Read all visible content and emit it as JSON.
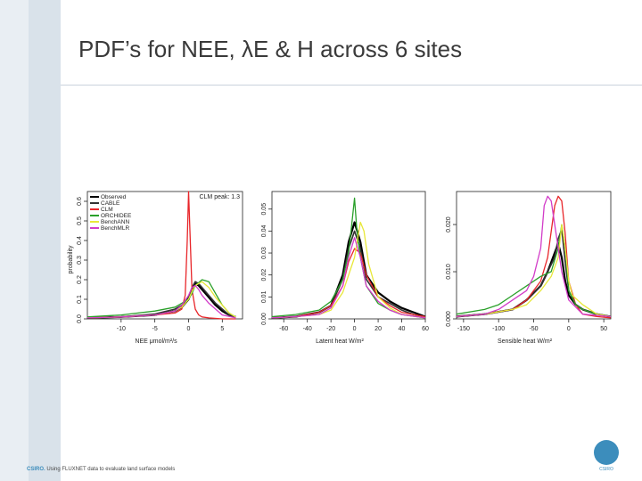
{
  "slide": {
    "title": "PDF’s for NEE, λE & H across 6 sites",
    "footer_brand": "CSIRO.",
    "footer_text": " Using FLUXNET data to evaluate land surface models",
    "logo_text": "CSIRO"
  },
  "legend": {
    "entries": [
      {
        "name": "Observed",
        "color": "#000000"
      },
      {
        "name": "CABLE",
        "color": "#333333"
      },
      {
        "name": "CLM",
        "color": "#e8262a"
      },
      {
        "name": "ORCHIDEE",
        "color": "#2aa02a"
      },
      {
        "name": "BenchANN",
        "color": "#e8e83a"
      },
      {
        "name": "BenchMLR",
        "color": "#d23cc8"
      }
    ]
  },
  "chart_data": [
    {
      "type": "line",
      "xlabel": "NEE μmol/m²/s",
      "ylabel": "probability",
      "xlim": [
        -15,
        8
      ],
      "ylim": [
        0,
        0.65
      ],
      "xticks": [
        "-10",
        "-5",
        "0",
        "5"
      ],
      "yticks": [
        "0.0",
        "0.1",
        "0.2",
        "0.3",
        "0.4",
        "0.5",
        "0.6"
      ],
      "annotation": "CLM peak: 1.3",
      "legend_position": "top-left",
      "series": [
        {
          "name": "Observed",
          "x": [
            -15,
            -10,
            -5,
            -2,
            -1,
            0,
            0.5,
            1,
            1.5,
            2,
            3,
            4,
            5,
            6,
            7
          ],
          "y": [
            0.005,
            0.01,
            0.02,
            0.04,
            0.06,
            0.1,
            0.15,
            0.18,
            0.17,
            0.15,
            0.11,
            0.07,
            0.04,
            0.02,
            0.01
          ]
        },
        {
          "name": "CABLE",
          "x": [
            -15,
            -10,
            -5,
            -2,
            -1,
            0,
            0.5,
            1,
            1.5,
            2,
            3,
            4,
            5,
            6,
            7
          ],
          "y": [
            0.005,
            0.01,
            0.025,
            0.05,
            0.07,
            0.11,
            0.16,
            0.19,
            0.18,
            0.16,
            0.12,
            0.08,
            0.05,
            0.02,
            0.01
          ]
        },
        {
          "name": "CLM",
          "x": [
            -15,
            -10,
            -5,
            -2,
            -1,
            -0.5,
            -0.2,
            0,
            0.2,
            0.5,
            1,
            1.5,
            2,
            3,
            5,
            7
          ],
          "y": [
            0.005,
            0.01,
            0.02,
            0.03,
            0.05,
            0.12,
            0.4,
            0.65,
            0.45,
            0.15,
            0.05,
            0.02,
            0.01,
            0.005,
            0.0,
            0.0
          ]
        },
        {
          "name": "ORCHIDEE",
          "x": [
            -15,
            -10,
            -5,
            -2,
            -1,
            0,
            0.5,
            1,
            2,
            3,
            4,
            5,
            6,
            7
          ],
          "y": [
            0.01,
            0.02,
            0.04,
            0.06,
            0.08,
            0.1,
            0.13,
            0.17,
            0.2,
            0.19,
            0.13,
            0.07,
            0.03,
            0.01
          ]
        },
        {
          "name": "BenchANN",
          "x": [
            -15,
            -10,
            -5,
            -2,
            -1,
            0,
            0.5,
            1,
            2,
            3,
            4,
            5,
            6,
            7
          ],
          "y": [
            0.005,
            0.01,
            0.02,
            0.04,
            0.06,
            0.1,
            0.14,
            0.17,
            0.19,
            0.16,
            0.11,
            0.07,
            0.03,
            0.01
          ]
        },
        {
          "name": "BenchMLR",
          "x": [
            -15,
            -10,
            -5,
            -2,
            -1,
            0,
            0.5,
            1,
            1.5,
            2,
            3,
            4,
            5,
            7
          ],
          "y": [
            0.005,
            0.01,
            0.02,
            0.04,
            0.07,
            0.12,
            0.16,
            0.17,
            0.15,
            0.12,
            0.08,
            0.05,
            0.02,
            0.005
          ]
        }
      ]
    },
    {
      "type": "line",
      "xlabel": "Latent heat W/m²",
      "ylabel": "",
      "xlim": [
        -70,
        60
      ],
      "ylim": [
        0,
        0.058
      ],
      "xticks": [
        "-60",
        "-40",
        "-20",
        "0",
        "20",
        "40",
        "60"
      ],
      "yticks": [
        "0.00",
        "0.01",
        "0.02",
        "0.03",
        "0.04",
        "0.05"
      ],
      "series": [
        {
          "name": "Observed",
          "x": [
            -70,
            -50,
            -30,
            -20,
            -10,
            -5,
            0,
            5,
            10,
            20,
            30,
            40,
            50,
            60
          ],
          "y": [
            0.0005,
            0.001,
            0.003,
            0.006,
            0.02,
            0.035,
            0.044,
            0.035,
            0.02,
            0.012,
            0.008,
            0.005,
            0.003,
            0.001
          ]
        },
        {
          "name": "CABLE",
          "x": [
            -70,
            -50,
            -30,
            -20,
            -10,
            -5,
            0,
            5,
            10,
            20,
            30,
            40,
            50,
            60
          ],
          "y": [
            0.0005,
            0.001,
            0.003,
            0.006,
            0.018,
            0.032,
            0.04,
            0.032,
            0.018,
            0.01,
            0.007,
            0.004,
            0.002,
            0.001
          ]
        },
        {
          "name": "CLM",
          "x": [
            -70,
            -50,
            -30,
            -20,
            -10,
            -5,
            0,
            5,
            10,
            20,
            30,
            40,
            50,
            60
          ],
          "y": [
            0.0005,
            0.001,
            0.003,
            0.006,
            0.015,
            0.026,
            0.032,
            0.03,
            0.02,
            0.01,
            0.006,
            0.003,
            0.002,
            0.001
          ]
        },
        {
          "name": "ORCHIDEE",
          "x": [
            -70,
            -50,
            -30,
            -20,
            -10,
            -5,
            -2,
            0,
            2,
            5,
            10,
            20,
            30,
            40,
            60
          ],
          "y": [
            0.001,
            0.002,
            0.004,
            0.008,
            0.018,
            0.03,
            0.045,
            0.055,
            0.04,
            0.028,
            0.015,
            0.007,
            0.004,
            0.002,
            0.0005
          ]
        },
        {
          "name": "BenchANN",
          "x": [
            -70,
            -50,
            -30,
            -20,
            -10,
            0,
            5,
            8,
            12,
            20,
            30,
            40,
            60
          ],
          "y": [
            0.0005,
            0.001,
            0.002,
            0.004,
            0.012,
            0.028,
            0.044,
            0.04,
            0.025,
            0.01,
            0.005,
            0.002,
            0.0005
          ]
        },
        {
          "name": "BenchMLR",
          "x": [
            -70,
            -50,
            -30,
            -20,
            -10,
            -5,
            0,
            5,
            10,
            20,
            30,
            40,
            60
          ],
          "y": [
            0.0005,
            0.001,
            0.002,
            0.005,
            0.015,
            0.028,
            0.037,
            0.028,
            0.015,
            0.008,
            0.004,
            0.002,
            0.0005
          ]
        }
      ]
    },
    {
      "type": "line",
      "xlabel": "Sensible heat W/m²",
      "ylabel": "",
      "xlim": [
        -160,
        60
      ],
      "ylim": [
        0,
        0.027
      ],
      "xticks": [
        "-150",
        "-100",
        "-50",
        "0",
        "50"
      ],
      "yticks": [
        "0.000",
        "0.010",
        "0.020"
      ],
      "series": [
        {
          "name": "Observed",
          "x": [
            -160,
            -120,
            -80,
            -60,
            -40,
            -30,
            -20,
            -15,
            -10,
            -5,
            0,
            10,
            20,
            40,
            60
          ],
          "y": [
            0.0005,
            0.001,
            0.002,
            0.004,
            0.007,
            0.01,
            0.014,
            0.016,
            0.013,
            0.008,
            0.005,
            0.003,
            0.002,
            0.001,
            0.0005
          ]
        },
        {
          "name": "CABLE",
          "x": [
            -160,
            -120,
            -80,
            -60,
            -40,
            -30,
            -20,
            -15,
            -10,
            -5,
            0,
            10,
            20,
            40,
            60
          ],
          "y": [
            0.0005,
            0.001,
            0.002,
            0.004,
            0.007,
            0.01,
            0.013,
            0.017,
            0.019,
            0.012,
            0.006,
            0.003,
            0.002,
            0.001,
            0.0005
          ]
        },
        {
          "name": "CLM",
          "x": [
            -160,
            -120,
            -80,
            -60,
            -40,
            -30,
            -20,
            -15,
            -10,
            -5,
            0,
            10,
            20,
            40,
            60
          ],
          "y": [
            0.0005,
            0.001,
            0.002,
            0.004,
            0.008,
            0.013,
            0.024,
            0.026,
            0.025,
            0.018,
            0.008,
            0.003,
            0.001,
            0.0005,
            0.0002
          ]
        },
        {
          "name": "ORCHIDEE",
          "x": [
            -160,
            -120,
            -100,
            -80,
            -60,
            -40,
            -25,
            -15,
            -10,
            -5,
            0,
            10,
            20,
            40,
            60
          ],
          "y": [
            0.001,
            0.002,
            0.003,
            0.005,
            0.007,
            0.009,
            0.01,
            0.015,
            0.02,
            0.015,
            0.006,
            0.003,
            0.002,
            0.001,
            0.0005
          ]
        },
        {
          "name": "BenchANN",
          "x": [
            -160,
            -120,
            -80,
            -60,
            -40,
            -25,
            -15,
            -10,
            -5,
            0,
            5,
            20,
            40,
            60
          ],
          "y": [
            0.0005,
            0.001,
            0.002,
            0.003,
            0.006,
            0.009,
            0.013,
            0.02,
            0.015,
            0.008,
            0.005,
            0.003,
            0.001,
            0.0005
          ]
        },
        {
          "name": "BenchMLR",
          "x": [
            -160,
            -120,
            -100,
            -80,
            -60,
            -50,
            -40,
            -35,
            -30,
            -25,
            -20,
            -10,
            0,
            20,
            60
          ],
          "y": [
            0.0005,
            0.001,
            0.002,
            0.004,
            0.006,
            0.009,
            0.015,
            0.024,
            0.026,
            0.025,
            0.02,
            0.01,
            0.004,
            0.001,
            0.0005
          ]
        }
      ]
    }
  ]
}
